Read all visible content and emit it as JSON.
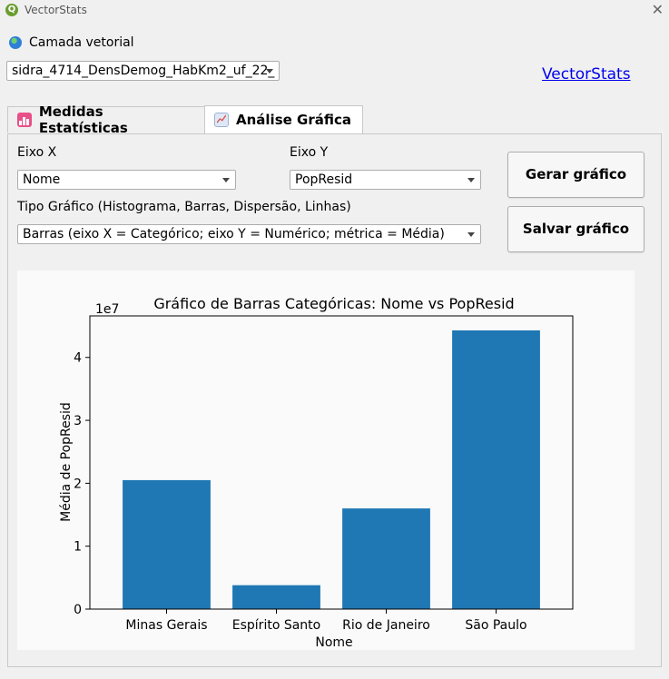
{
  "window": {
    "title": "VectorStats",
    "close_symbol": "✕"
  },
  "layer": {
    "label": "Camada vetorial",
    "selected": "sidra_4714_DensDemog_HabKm2_uf_22_"
  },
  "link_label": "VectorStats",
  "tabs": [
    {
      "label": "Medidas Estatísticas",
      "active": false
    },
    {
      "label": "Análise Gráfica",
      "active": true
    }
  ],
  "controls": {
    "x_axis_label": "Eixo X",
    "x_axis_value": "Nome",
    "y_axis_label": "Eixo  Y",
    "y_axis_value": "PopResid",
    "chart_type_label": "Tipo Gráfico (Histograma, Barras, Dispersão, Linhas)",
    "chart_type_value": "Barras (eixo X = Categórico; eixo Y = Numérico; métrica = Média)",
    "generate_button": "Gerar gráfico",
    "save_button": "Salvar gráfico"
  },
  "chart_data": {
    "type": "bar",
    "title": "Gráfico de Barras Categóricas: Nome vs PopResid",
    "xlabel": "Nome",
    "ylabel": "Média de PopResid",
    "scale_label": "1e7",
    "categories": [
      "Minas Gerais",
      "Espírito Santo",
      "Rio de Janeiro",
      "São Paulo"
    ],
    "values": [
      2.05,
      0.38,
      1.6,
      4.43
    ],
    "ylim": [
      0,
      4.66
    ],
    "yticks": [
      0,
      1,
      2,
      3,
      4
    ],
    "bar_color": "#1f77b4",
    "grid": false
  }
}
